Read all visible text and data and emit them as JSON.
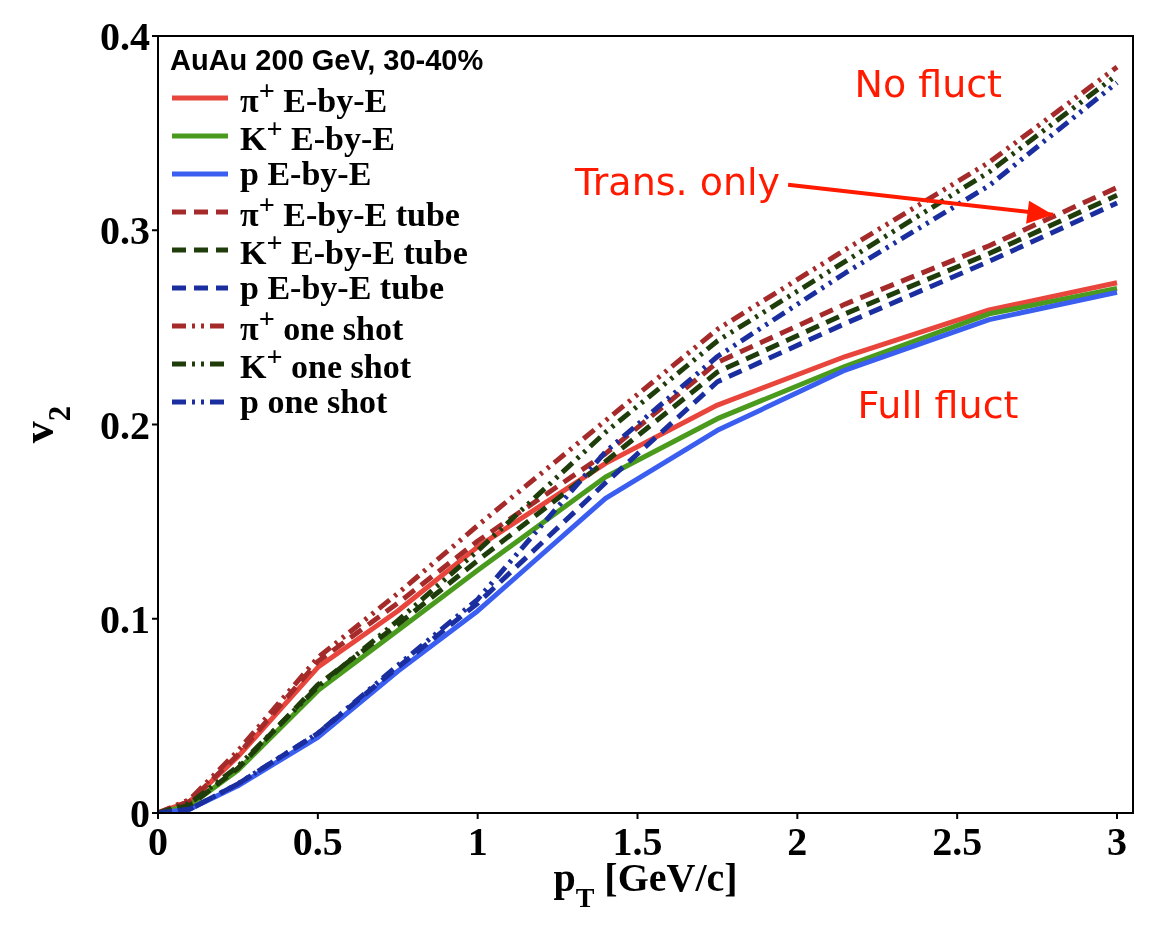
{
  "chart_data": {
    "type": "line",
    "xlabel": "p$_{T}$ [GeV/c]",
    "ylabel": "v$_{2}$",
    "legend_title": "AuAu 200 GeV, 30-40%",
    "legend": "top left",
    "grid": false,
    "marker": "none",
    "x": [
      0,
      0.1,
      0.25,
      0.5,
      0.75,
      1,
      1.4,
      1.75,
      2.15,
      2.6,
      3
    ],
    "xlim": [
      0,
      3.05
    ],
    "xticks": [
      0,
      0.5,
      1,
      1.5,
      2,
      2.5,
      3
    ],
    "ylim": [
      0,
      0.4
    ],
    "yticks": [
      0,
      0.1,
      0.2,
      0.3,
      0.4
    ],
    "series": [
      {
        "name": "π$^{+}$ E-by-E",
        "color": "#e8463c",
        "line_style": "solid",
        "values": [
          0,
          0.006,
          0.029,
          0.075,
          0.104,
          0.137,
          0.18,
          0.21,
          0.235,
          0.259,
          0.273
        ]
      },
      {
        "name": "K$^{+}$ E-by-E",
        "color": "#4a9a1e",
        "line_style": "solid",
        "values": [
          0,
          0.004,
          0.022,
          0.063,
          0.094,
          0.125,
          0.173,
          0.203,
          0.23,
          0.257,
          0.27
        ]
      },
      {
        "name": "p E-by-E",
        "color": "#3a5ef0",
        "line_style": "solid",
        "values": [
          0,
          0.002,
          0.014,
          0.039,
          0.073,
          0.104,
          0.162,
          0.197,
          0.228,
          0.254,
          0.268
        ]
      },
      {
        "name": "π$^{+}$ E-by-E tube",
        "color": "#a52a2a",
        "line_style": "dashed",
        "values": [
          0,
          0.006,
          0.03,
          0.078,
          0.108,
          0.14,
          0.185,
          0.232,
          0.262,
          0.292,
          0.322
        ]
      },
      {
        "name": "K$^{+}$ E-by-E tube",
        "color": "#1f3d0a",
        "line_style": "dashed",
        "values": [
          0,
          0.004,
          0.023,
          0.066,
          0.097,
          0.13,
          0.181,
          0.227,
          0.257,
          0.288,
          0.318
        ]
      },
      {
        "name": "p E-by-E tube",
        "color": "#1a2ea0",
        "line_style": "dashed",
        "values": [
          0,
          0.002,
          0.015,
          0.041,
          0.075,
          0.108,
          0.17,
          0.222,
          0.252,
          0.284,
          0.314
        ]
      },
      {
        "name": "π$^{+}$ one shot",
        "color": "#a52a2a",
        "line_style": "dashdot",
        "values": [
          0,
          0.007,
          0.032,
          0.08,
          0.113,
          0.148,
          0.202,
          0.249,
          0.29,
          0.335,
          0.384
        ]
      },
      {
        "name": "K$^{+}$ one shot",
        "color": "#1f3d0a",
        "line_style": "dashdot",
        "values": [
          0,
          0.005,
          0.024,
          0.065,
          0.099,
          0.135,
          0.196,
          0.243,
          0.284,
          0.33,
          0.38
        ]
      },
      {
        "name": "p one shot",
        "color": "#1a2ea0",
        "line_style": "dashdot",
        "values": [
          0,
          0.002,
          0.015,
          0.041,
          0.076,
          0.11,
          0.186,
          0.235,
          0.278,
          0.323,
          0.376
        ]
      }
    ],
    "annotations": [
      "No fluct",
      {
        "text": "Trans. only",
        "x": 2.8,
        "y": 0.308
      },
      "Full fluct"
    ]
  }
}
